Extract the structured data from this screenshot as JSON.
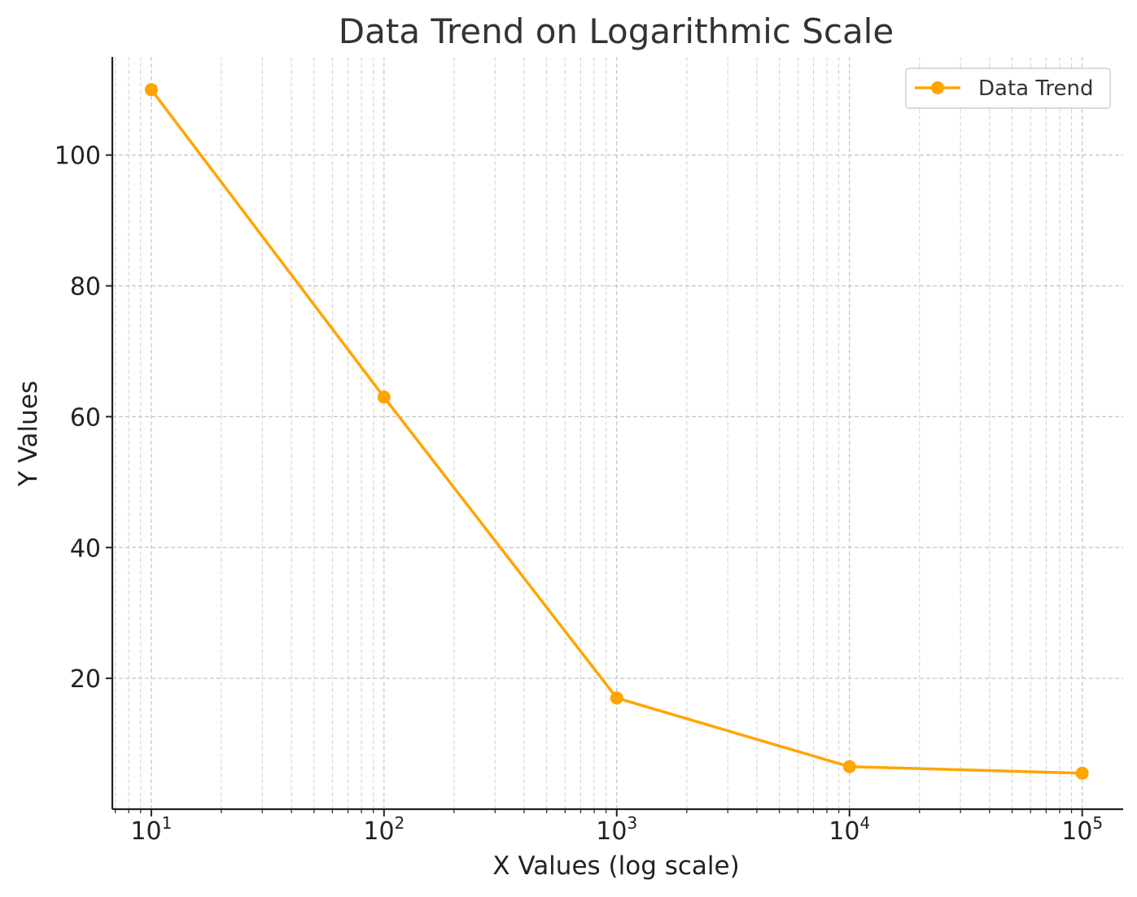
{
  "chart_data": {
    "type": "line",
    "title": "Data Trend on Logarithmic Scale",
    "xlabel": "X Values (log scale)",
    "ylabel": "Y Values",
    "xscale": "log",
    "xlim": [
      6.8,
      150000
    ],
    "ylim": [
      0,
      115
    ],
    "grid": true,
    "legend_placement": "top-right",
    "x_ticks": [
      {
        "value": 10,
        "base": "10",
        "exp": "1"
      },
      {
        "value": 100,
        "base": "10",
        "exp": "2"
      },
      {
        "value": 1000,
        "base": "10",
        "exp": "3"
      },
      {
        "value": 10000,
        "base": "10",
        "exp": "4"
      },
      {
        "value": 100000,
        "base": "10",
        "exp": "5"
      }
    ],
    "y_ticks": [
      20,
      40,
      60,
      80,
      100
    ],
    "series": [
      {
        "name": "Data Trend",
        "color": "#FFA500",
        "x": [
          10,
          100,
          1000,
          10000,
          100000
        ],
        "y": [
          110,
          63,
          17,
          6.5,
          5.5
        ]
      }
    ]
  }
}
